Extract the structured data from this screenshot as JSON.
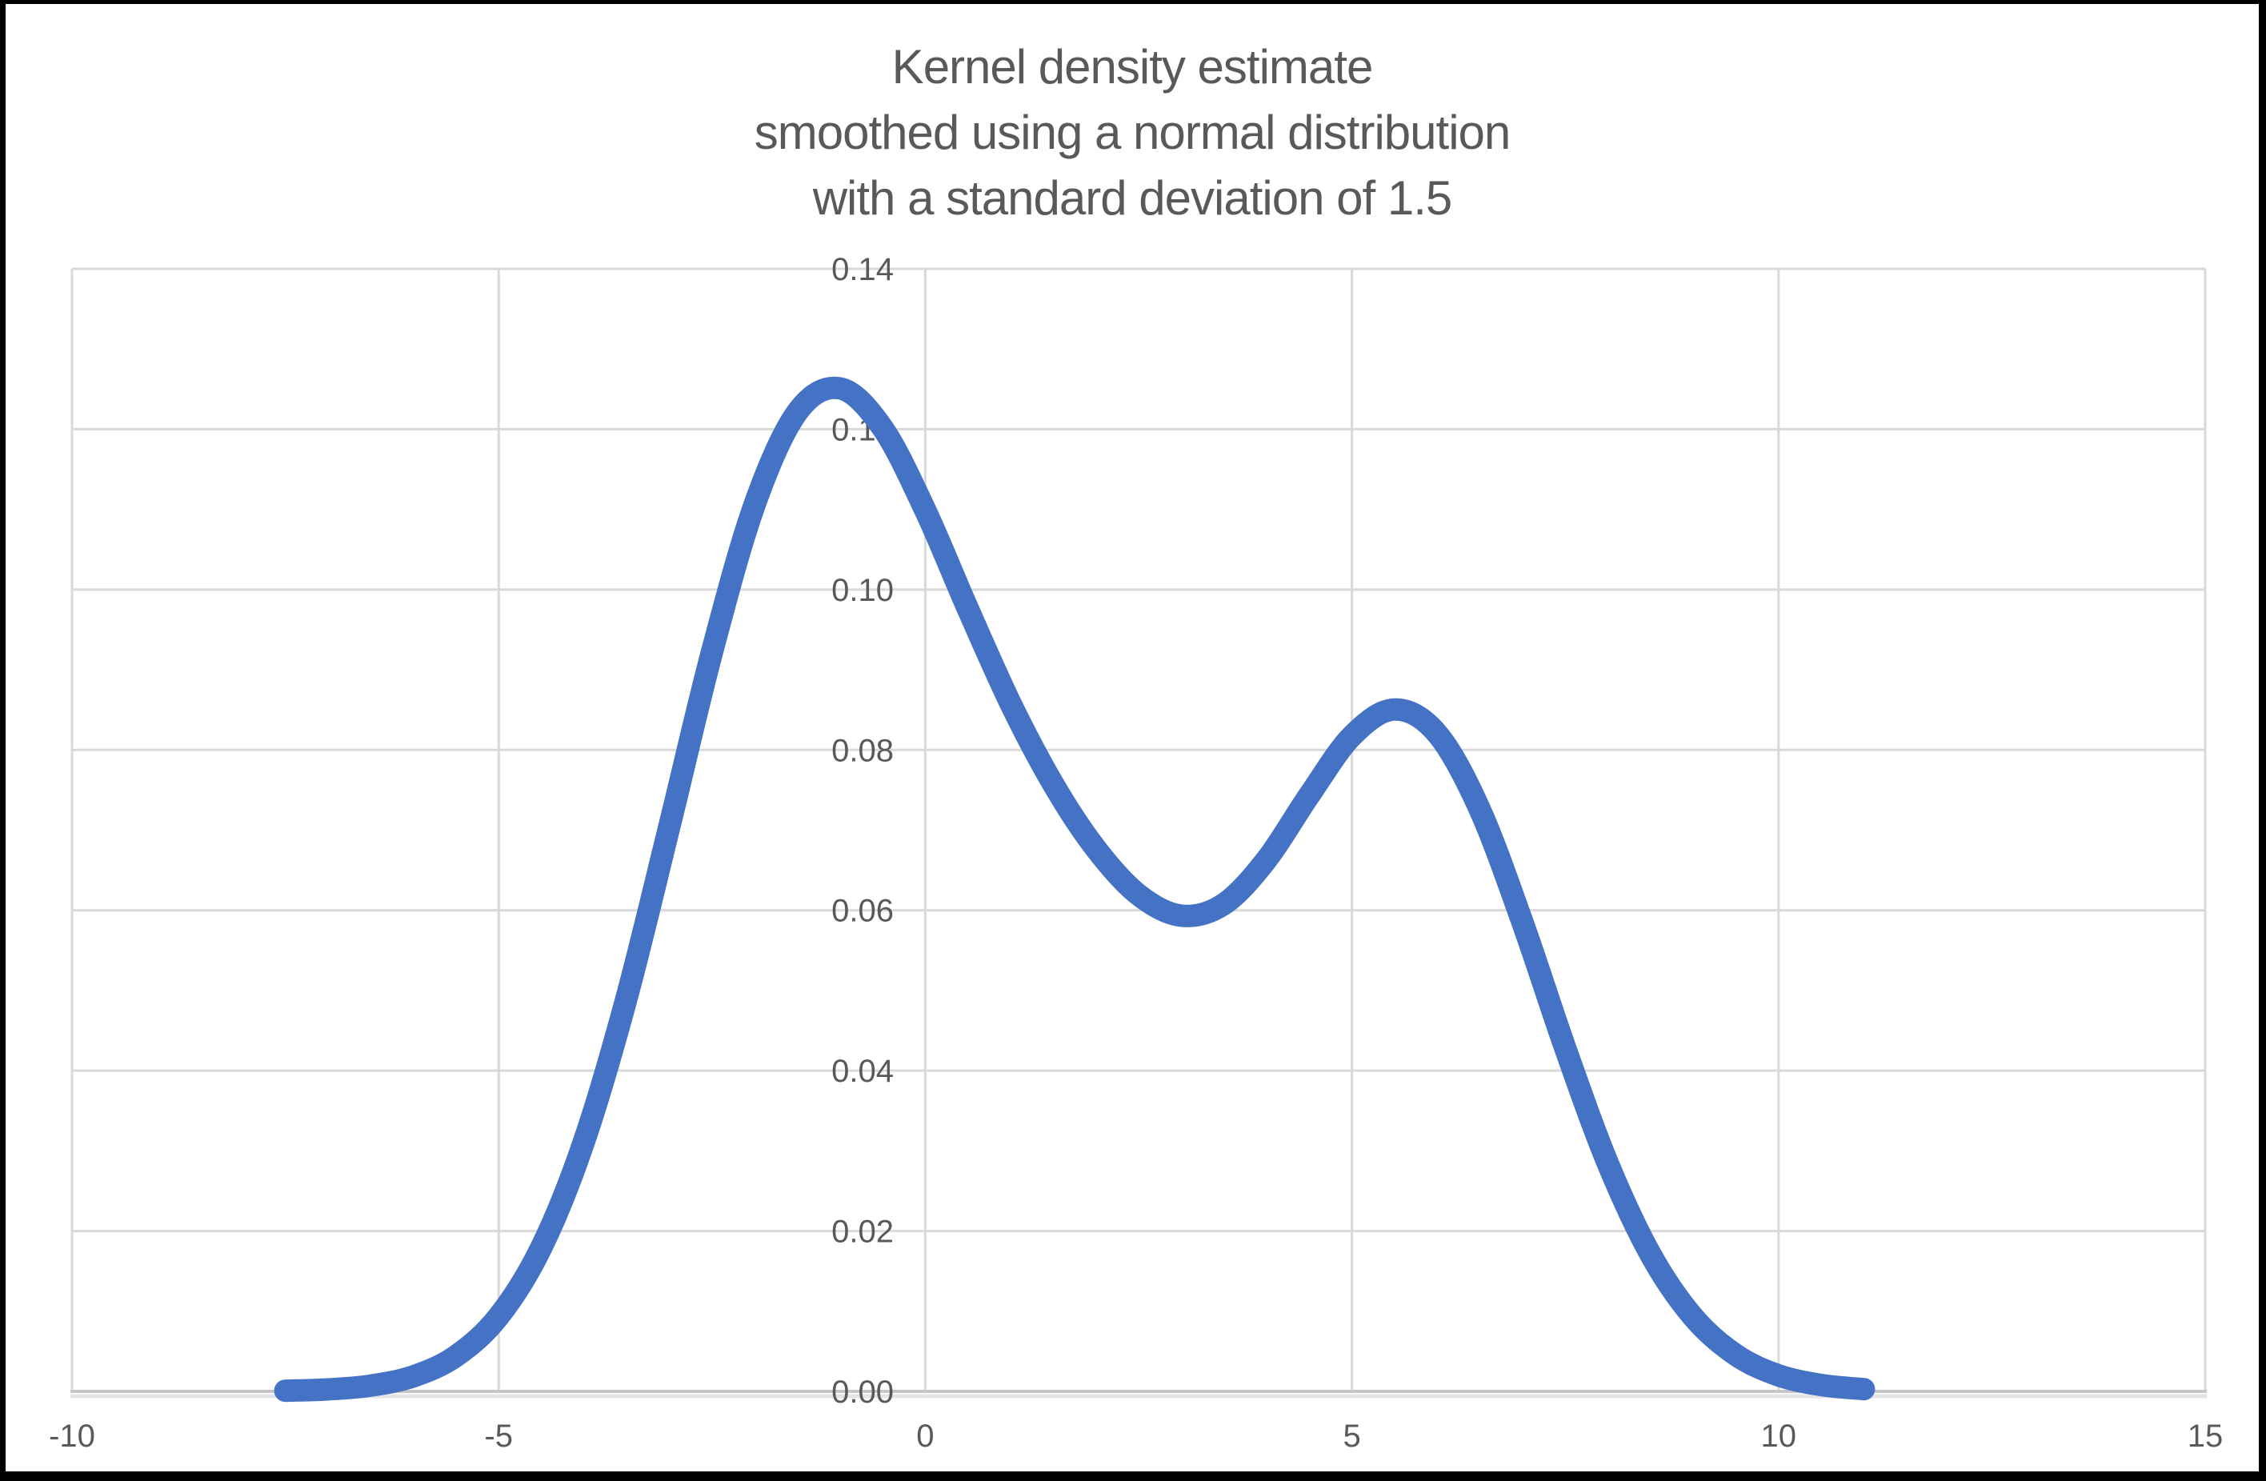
{
  "title": {
    "lines": [
      "Kernel density estimate",
      "smoothed using a normal distribution",
      "with a standard deviation of 1.5"
    ]
  },
  "colors": {
    "series_blue": "#4472C4",
    "gridline": "#D9D9D9",
    "axis_line": "#C6C6C6",
    "axis_shadow": "#E4E4E4",
    "text_gray": "#595959",
    "frame_border": "#000000"
  },
  "chart_data": {
    "type": "line",
    "title": "Kernel density estimate smoothed using a normal distribution with a standard deviation of 1.5",
    "xlabel": "",
    "ylabel": "",
    "xlim": [
      -10,
      15
    ],
    "ylim": [
      0,
      0.14
    ],
    "grid": true,
    "legend": "none",
    "x_ticks": [
      -10,
      -5,
      0,
      5,
      10,
      15
    ],
    "x_tick_labels": [
      "-10",
      "-5",
      "0",
      "5",
      "10",
      "15"
    ],
    "y_ticks": [
      0,
      0.02,
      0.04,
      0.06,
      0.08,
      0.1,
      0.12,
      0.14
    ],
    "y_tick_labels": [
      "0.00",
      "0.02",
      "0.04",
      "0.06",
      "0.08",
      "0.10",
      "0.12",
      "0.14"
    ],
    "series": [
      {
        "name": "Kernel density estimate",
        "color": "#4472C4",
        "stroke_width": 28,
        "x": [
          -7.5,
          -7.0,
          -6.5,
          -6.0,
          -5.5,
          -5.0,
          -4.5,
          -4.0,
          -3.5,
          -3.0,
          -2.5,
          -2.0,
          -1.5,
          -1.0,
          -0.5,
          0.0,
          0.5,
          1.0,
          1.5,
          2.0,
          2.5,
          3.0,
          3.5,
          4.0,
          4.5,
          5.0,
          5.5,
          6.0,
          6.5,
          7.0,
          7.5,
          8.0,
          8.5,
          9.0,
          9.5,
          10.0,
          10.5,
          11.0
        ],
        "y": [
          8e-05,
          0.00025,
          0.00072,
          0.00188,
          0.00441,
          0.00935,
          0.01794,
          0.03115,
          0.0491,
          0.07043,
          0.0922,
          0.11059,
          0.12213,
          0.12509,
          0.12014,
          0.10988,
          0.09758,
          0.08579,
          0.07572,
          0.06767,
          0.06193,
          0.05933,
          0.06078,
          0.06633,
          0.07435,
          0.08173,
          0.08504,
          0.08202,
          0.07253,
          0.05846,
          0.04282,
          0.02842,
          0.01708,
          0.00927,
          0.00454,
          0.002,
          0.0008,
          0.00028
        ]
      }
    ]
  }
}
